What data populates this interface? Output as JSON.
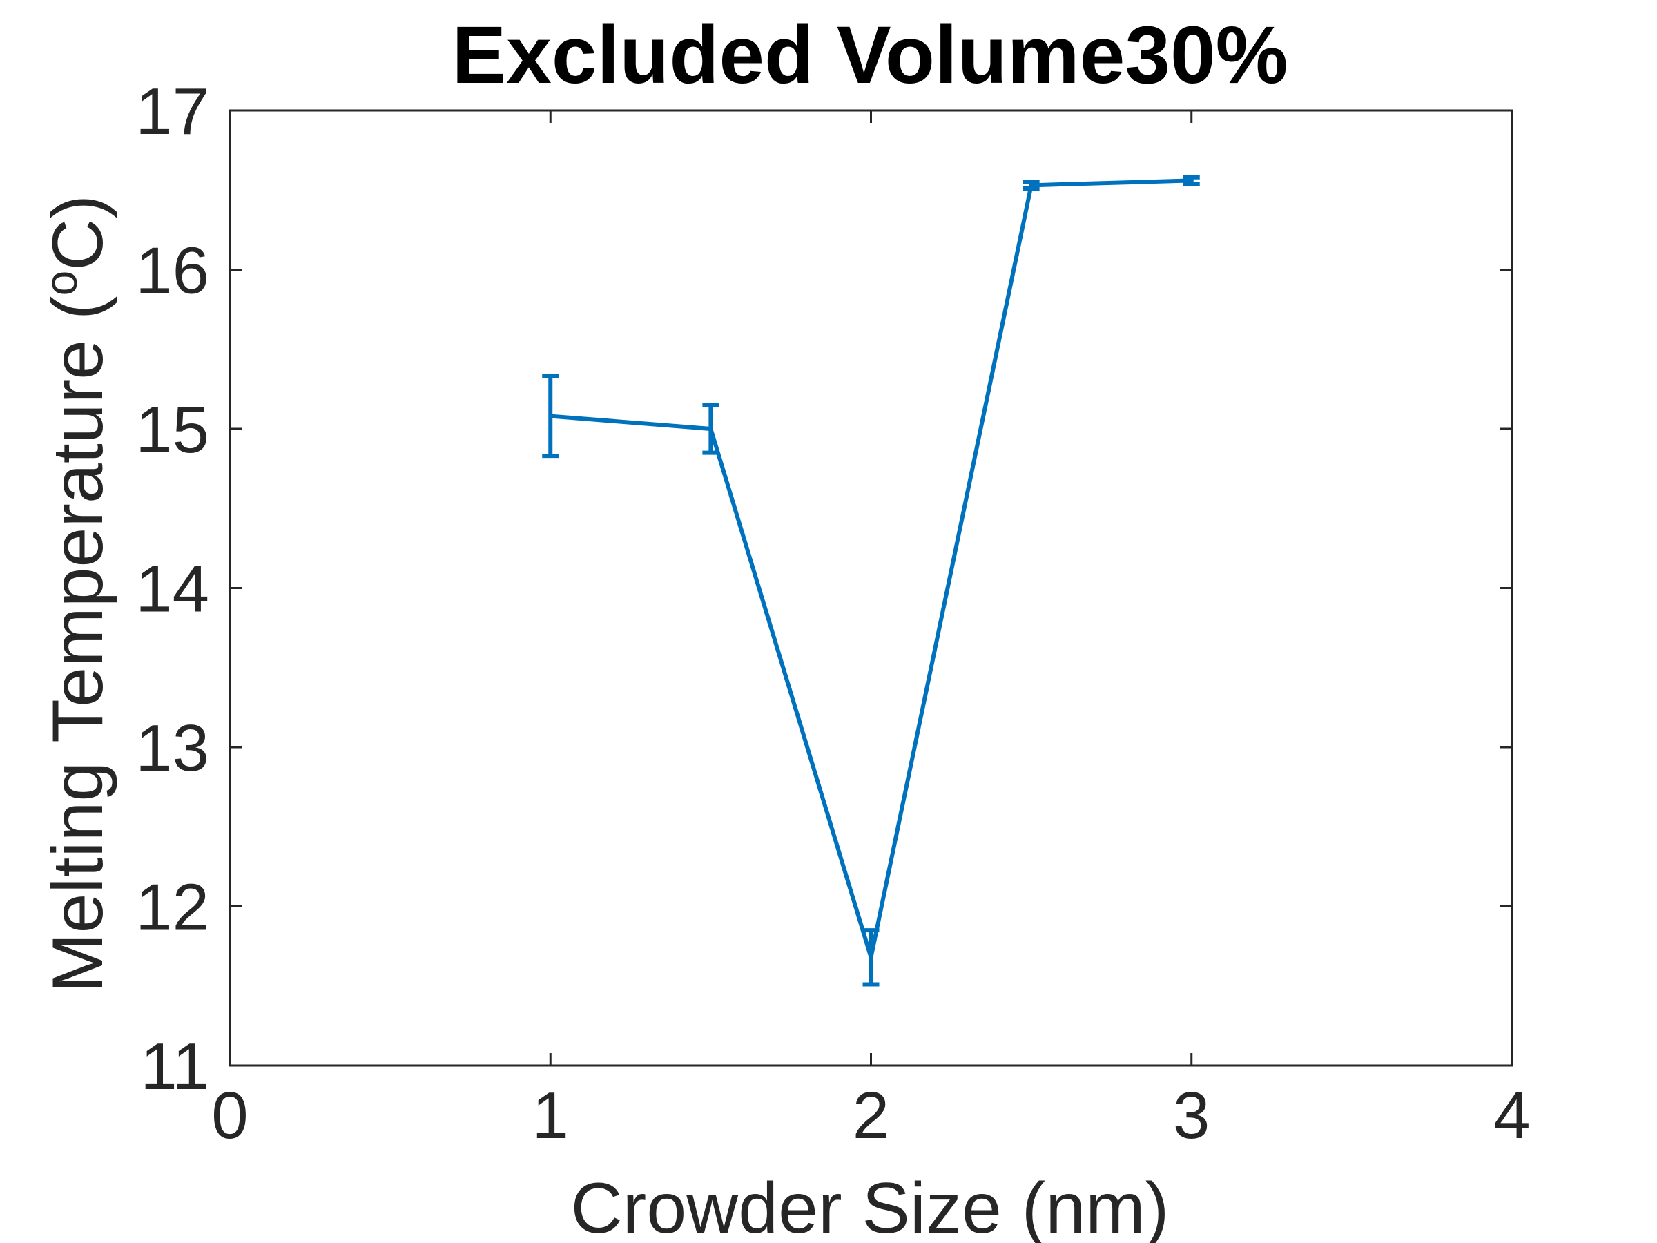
{
  "chart_data": {
    "type": "line",
    "title": "Excluded Volume30%",
    "xlabel": "Crowder Size (nm)",
    "ylabel": {
      "prefix": "Melting Temperature (",
      "superscript": "o",
      "suffix": "C)"
    },
    "xlim": [
      0,
      4
    ],
    "ylim": [
      11,
      17
    ],
    "xticks": [
      0,
      1,
      2,
      3,
      4
    ],
    "yticks": [
      11,
      12,
      13,
      14,
      15,
      16,
      17
    ],
    "grid": false,
    "legend": "none",
    "series": [
      {
        "color": "#0072bd",
        "x": [
          1,
          1.5,
          2,
          2.5,
          3
        ],
        "y": [
          15.08,
          15.0,
          11.68,
          16.53,
          16.56
        ],
        "error": [
          0.25,
          0.15,
          0.17,
          0.02,
          0.02
        ]
      }
    ]
  },
  "colors": {
    "axis": "#262626",
    "series": "#0072bd",
    "title": "#000000",
    "background": "#ffffff"
  }
}
